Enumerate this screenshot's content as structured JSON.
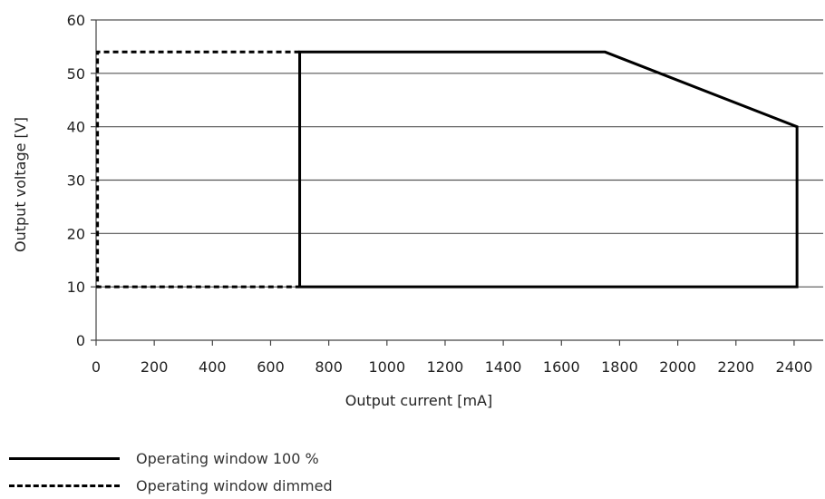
{
  "chart_data": {
    "type": "line",
    "xlabel": "Output current [mA]",
    "ylabel": "Output voltage [V]",
    "xlim": [
      0,
      2500
    ],
    "ylim": [
      0,
      60
    ],
    "x_ticks": [
      0,
      200,
      400,
      600,
      800,
      1000,
      1200,
      1400,
      1600,
      1800,
      2000,
      2200,
      2400
    ],
    "y_ticks": [
      0,
      10,
      20,
      30,
      40,
      50,
      60
    ],
    "grid": "horizontal",
    "legend_position": "bottom-left",
    "series": [
      {
        "name": "Operating window 100 %",
        "style": "solid",
        "color": "#000000",
        "points": [
          [
            700,
            10
          ],
          [
            700,
            54
          ],
          [
            1750,
            54
          ],
          [
            2410,
            40
          ],
          [
            2410,
            10
          ],
          [
            700,
            10
          ]
        ]
      },
      {
        "name": "Operating window dimmed",
        "style": "dashed",
        "color": "#000000",
        "points": [
          [
            700,
            54
          ],
          [
            5,
            54
          ],
          [
            5,
            10
          ],
          [
            700,
            10
          ]
        ]
      }
    ]
  }
}
